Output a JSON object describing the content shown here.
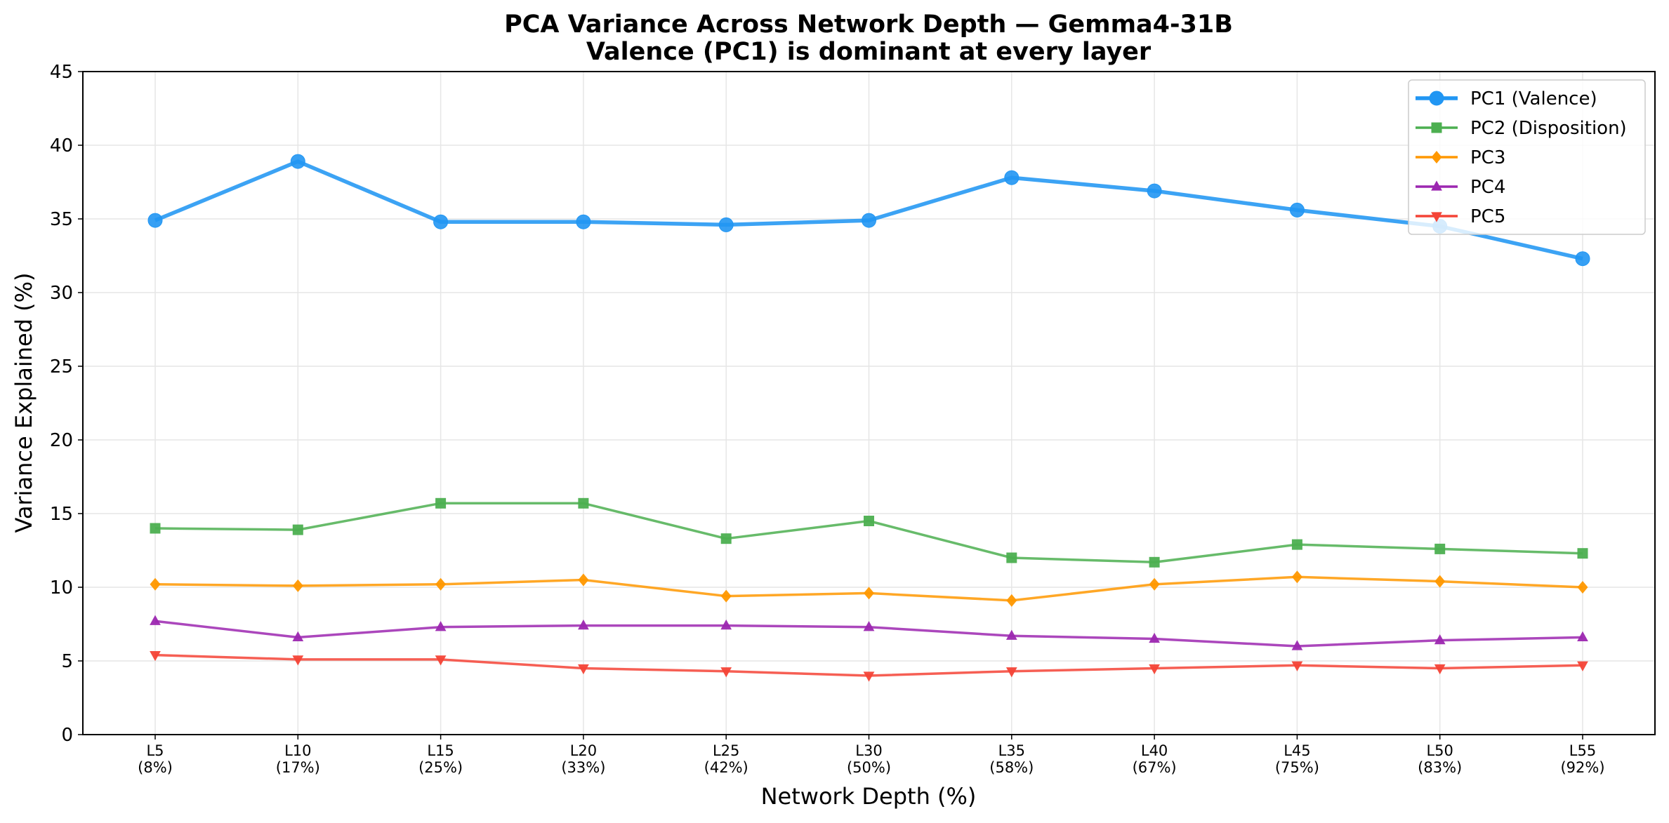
{
  "chart_data": {
    "type": "line",
    "title": "PCA Variance Across Network Depth — Gemma4-31B",
    "subtitle": "Valence (PC1) is dominant at every layer",
    "xlabel": "Network Depth (%)",
    "ylabel": "Variance Explained (%)",
    "ylim": [
      0,
      45
    ],
    "yticks": [
      "0",
      "5",
      "10",
      "15",
      "20",
      "25",
      "30",
      "35",
      "40",
      "45"
    ],
    "grid": true,
    "legend_position": "top-right",
    "categories": [
      {
        "layer": "L5",
        "pct": "(8%)"
      },
      {
        "layer": "L10",
        "pct": "(17%)"
      },
      {
        "layer": "L15",
        "pct": "(25%)"
      },
      {
        "layer": "L20",
        "pct": "(33%)"
      },
      {
        "layer": "L25",
        "pct": "(42%)"
      },
      {
        "layer": "L30",
        "pct": "(50%)"
      },
      {
        "layer": "L35",
        "pct": "(58%)"
      },
      {
        "layer": "L40",
        "pct": "(67%)"
      },
      {
        "layer": "L45",
        "pct": "(75%)"
      },
      {
        "layer": "L50",
        "pct": "(83%)"
      },
      {
        "layer": "L55",
        "pct": "(92%)"
      }
    ],
    "series": [
      {
        "name": "PC1 (Valence)",
        "color": "#2196F3",
        "marker": "circle",
        "values": [
          34.9,
          38.9,
          34.8,
          34.8,
          34.6,
          34.9,
          37.8,
          36.9,
          35.6,
          34.5,
          32.3
        ]
      },
      {
        "name": "PC2 (Disposition)",
        "color": "#4CAF50",
        "marker": "square",
        "values": [
          14.0,
          13.9,
          15.7,
          15.7,
          13.3,
          14.5,
          12.0,
          11.7,
          12.9,
          12.6,
          12.3
        ]
      },
      {
        "name": "PC3",
        "color": "#FF9800",
        "marker": "diamond",
        "values": [
          10.2,
          10.1,
          10.2,
          10.5,
          9.4,
          9.6,
          9.1,
          10.2,
          10.7,
          10.4,
          10.0
        ]
      },
      {
        "name": "PC4",
        "color": "#9C27B0",
        "marker": "triangle-up",
        "values": [
          7.7,
          6.6,
          7.3,
          7.4,
          7.4,
          7.3,
          6.7,
          6.5,
          6.0,
          6.4,
          6.6
        ]
      },
      {
        "name": "PC5",
        "color": "#F44336",
        "marker": "triangle-down",
        "values": [
          5.4,
          5.1,
          5.1,
          4.5,
          4.3,
          4.0,
          4.3,
          4.5,
          4.7,
          4.5,
          4.7
        ]
      }
    ]
  }
}
